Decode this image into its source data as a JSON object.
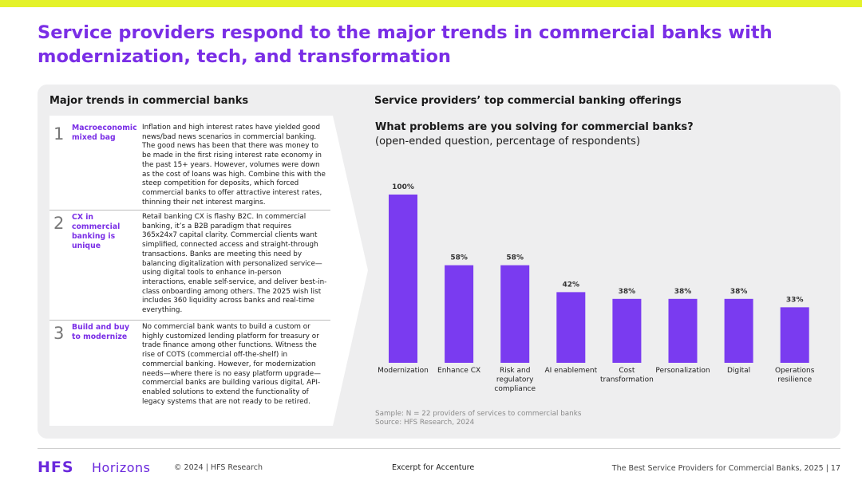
{
  "header": {
    "title": "Service providers respond to the major trends in commercial banks with modernization, tech, and transformation"
  },
  "left_panel": {
    "heading": "Major trends in commercial banks",
    "trends": [
      {
        "number": "1",
        "label": "Macroeconomic mixed bag",
        "text": "Inflation and high interest rates have yielded good news/bad news scenarios in commercial banking. The good news has been that there was money to be made in the first rising interest rate economy in the past 15+ years. However, volumes were down as the cost of loans was high. Combine this with the steep competition for deposits, which forced commercial banks to offer attractive interest rates, thinning their net interest margins."
      },
      {
        "number": "2",
        "label": "CX in commercial banking is unique",
        "text": "Retail banking CX is flashy B2C. In commercial banking, it’s a B2B paradigm that requires 365x24x7 capital clarity. Commercial clients want simplified, connected access and straight-through transactions. Banks are meeting this need by balancing digitalization with personalized service—using digital tools to enhance in-person interactions, enable self-service, and deliver best-in-class onboarding among others. The 2025 wish list includes 360 liquidity across banks and real-time everything."
      },
      {
        "number": "3",
        "label": "Build and buy to modernize",
        "text": "No commercial bank wants to build a custom or highly customized lending platform for treasury or trade finance among other functions. Witness the rise of COTS (commercial off-the-shelf) in commercial banking. However, for modernization needs—where there is no easy platform upgrade—commercial banks are building various digital, API-enabled solutions to extend the functionality of legacy systems that are not ready to be retired."
      }
    ]
  },
  "right_panel": {
    "heading": "Service providers’ top commercial banking offerings",
    "question": "What problems are you solving for commercial banks?",
    "subquestion": "(open-ended question, percentage of respondents)",
    "sample": "Sample: N = 22 providers of services to commercial banks",
    "source": "Source: HFS Research, 2024"
  },
  "chart_data": {
    "type": "bar",
    "categories": [
      "Modernization",
      "Enhance CX",
      "Risk and regulatory compliance",
      "AI enablement",
      "Cost transformation",
      "Personalization",
      "Digital",
      "Operations resilience"
    ],
    "category_lines": [
      [
        "Modernization"
      ],
      [
        "Enhance CX"
      ],
      [
        "Risk and",
        "regulatory",
        "compliance"
      ],
      [
        "AI enablement"
      ],
      [
        "Cost",
        "transformation"
      ],
      [
        "Personalization"
      ],
      [
        "Digital"
      ],
      [
        "Operations",
        "resilience"
      ]
    ],
    "values": [
      100,
      58,
      58,
      42,
      38,
      38,
      38,
      33
    ],
    "value_labels": [
      "100%",
      "58%",
      "58%",
      "42%",
      "38%",
      "38%",
      "38%",
      "33%"
    ],
    "ylim": [
      0,
      100
    ],
    "bar_color": "#7a3bf0",
    "grid": false,
    "legend": "none"
  },
  "footer": {
    "logo_hfs": "HFS",
    "logo_horizons": "Horizons",
    "copyright": "© 2024 | HFS Research",
    "excerpt": "Excerpt for Accenture",
    "page_info": "The Best Service Providers for Commercial Banks, 2025 | 17"
  },
  "colors": {
    "accent": "#7a2ee6",
    "topbar": "#e4f22a",
    "panel": "#eeeeef"
  }
}
